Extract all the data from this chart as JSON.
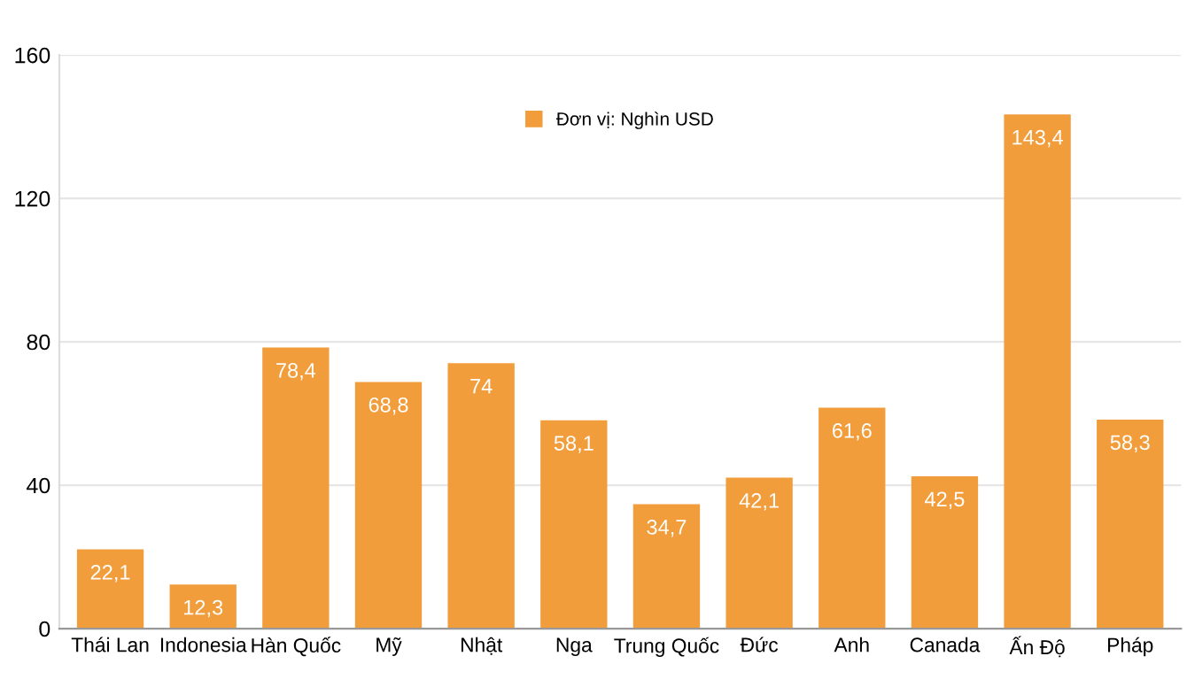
{
  "chart_data": {
    "type": "bar",
    "categories": [
      "Thái Lan",
      "Indonesia",
      "Hàn Quốc",
      "Mỹ",
      "Nhật",
      "Nga",
      "Trung Quốc",
      "Đức",
      "Anh",
      "Canada",
      "Ấn Độ",
      "Pháp"
    ],
    "series": [
      {
        "name": "Đơn vị: Nghìn USD",
        "color": "#f29d3b",
        "values": [
          22.1,
          12.3,
          78.4,
          68.8,
          74,
          58.1,
          34.7,
          42.1,
          61.6,
          42.5,
          143.4,
          58.3
        ],
        "value_labels": [
          "22,1",
          "12,3",
          "78,4",
          "68,8",
          "74",
          "58,1",
          "34,7",
          "42,1",
          "61,6",
          "42,5",
          "143,4",
          "58,3"
        ]
      }
    ],
    "ylim": [
      0,
      160
    ],
    "yticks": [
      0,
      40,
      80,
      120,
      160
    ],
    "grid": "y",
    "legend": "top"
  }
}
